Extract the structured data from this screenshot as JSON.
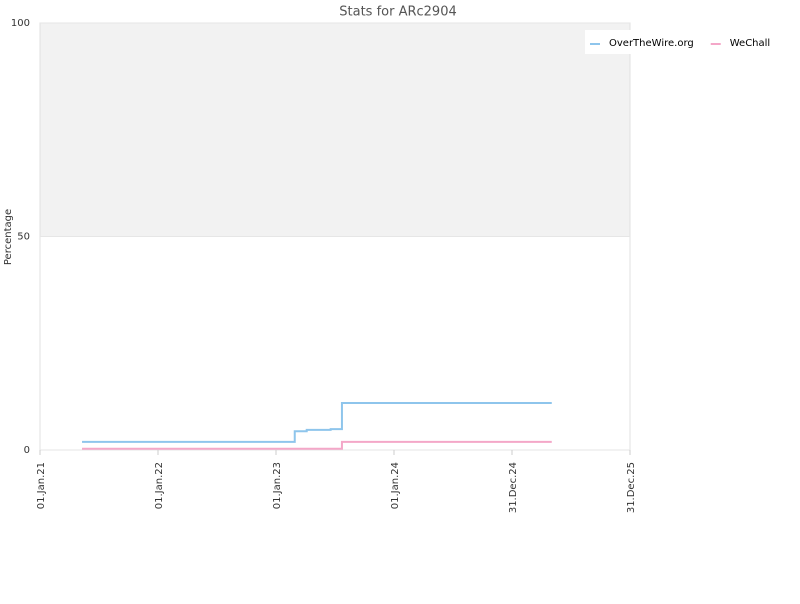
{
  "chart_data": {
    "type": "line",
    "step": "after",
    "title": "Stats for ARc2904",
    "ylabel": "Percentage",
    "x": [
      "2021-05-11",
      "2023-02-28",
      "2023-04-06",
      "2023-06-19",
      "2023-07-24",
      "2025-05-03"
    ],
    "series": [
      {
        "name": "OverTheWire.org",
        "color": "#8ec5ec",
        "values": [
          1.9,
          4.4,
          4.7,
          4.9,
          11,
          11
        ]
      },
      {
        "name": "WeChall",
        "color": "#f4a7c8",
        "values": [
          0.3,
          0.3,
          0.3,
          0.3,
          1.9,
          1.9
        ]
      }
    ],
    "xlim": [
      "2021-01-01",
      "2025-12-31"
    ],
    "xticks": [
      {
        "value": "2021-01-01",
        "label": "01.Jan.21"
      },
      {
        "value": "2022-01-01",
        "label": "01.Jan.22"
      },
      {
        "value": "2023-01-01",
        "label": "01.Jan.23"
      },
      {
        "value": "2024-01-01",
        "label": "01.Jan.24"
      },
      {
        "value": "2024-12-31",
        "label": "31.Dec.24"
      },
      {
        "value": "2025-12-31",
        "label": "31.Dec.25"
      }
    ],
    "ylim": [
      0,
      100
    ],
    "yticks": [
      0,
      50,
      100
    ],
    "band": {
      "from": 50,
      "to": 100,
      "color": "#f2f2f2"
    },
    "grid": true,
    "legend": "top-right"
  }
}
